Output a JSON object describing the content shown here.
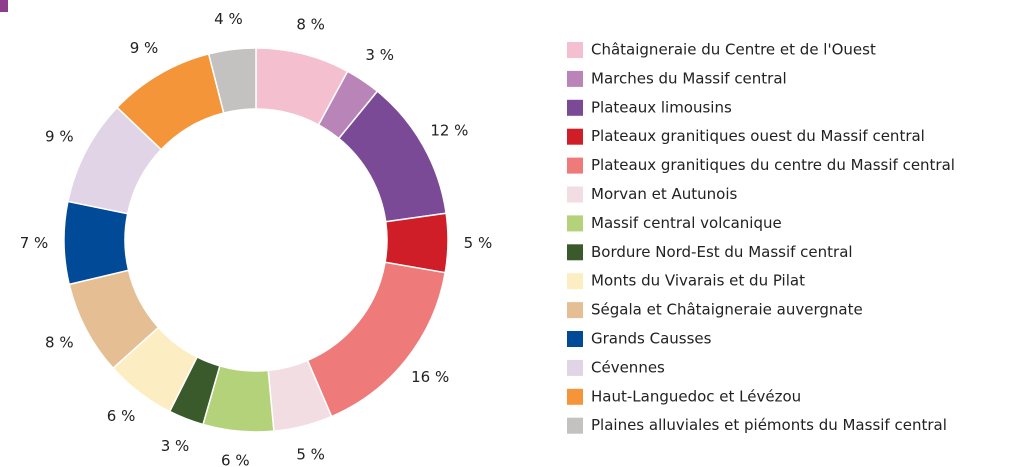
{
  "chart_data": {
    "type": "donut",
    "categories": [
      "Châtaigneraie du Centre et de l'Ouest",
      "Marches du Massif central",
      "Plateaux limousins",
      "Plateaux granitiques ouest du Massif central",
      "Plateaux granitiques du centre du Massif central",
      "Morvan et Autunois",
      "Massif central volcanique",
      "Bordure Nord-Est du Massif central",
      "Monts du Vivarais et du Pilat",
      "Ségala et Châtaigneraie auvergnate",
      "Grands Causses",
      "Cévennes",
      "Haut-Languedoc et Lévézou",
      "Plaines alluviales et piémonts du Massif central"
    ],
    "values": [
      8,
      3,
      12,
      5,
      16,
      5,
      6,
      3,
      6,
      8,
      7,
      9,
      9,
      4
    ],
    "value_labels": [
      "8 %",
      "3 %",
      "12 %",
      "5 %",
      "16 %",
      "5 %",
      "6 %",
      "3 %",
      "6 %",
      "8 %",
      "7 %",
      "9 %",
      "9 %",
      "4 %"
    ],
    "colors": [
      "#f4bfcf",
      "#b985b8",
      "#7b4a96",
      "#cf1e27",
      "#ef7a7a",
      "#f2dde3",
      "#b3d279",
      "#3a5a2c",
      "#fdedc3",
      "#e5bf93",
      "#004a98",
      "#e2d4e7",
      "#f39538",
      "#c3c2c0"
    ],
    "legend": "right"
  }
}
